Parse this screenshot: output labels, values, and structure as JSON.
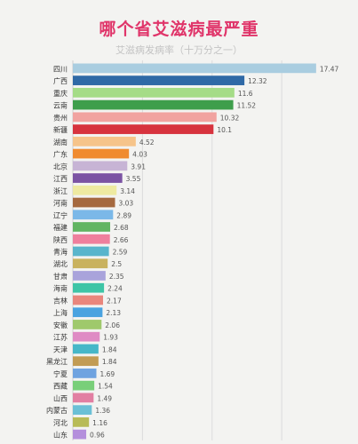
{
  "chart_data": {
    "type": "bar",
    "orientation": "horizontal",
    "title": "哪个省艾滋病最严重",
    "subtitle": "艾滋病发病率（十万分之一）",
    "categories": [
      "四川",
      "广西",
      "重庆",
      "云南",
      "贵州",
      "新疆",
      "湖南",
      "广东",
      "北京",
      "江西",
      "浙江",
      "河南",
      "辽宁",
      "福建",
      "陕西",
      "青海",
      "湖北",
      "甘肃",
      "海南",
      "吉林",
      "上海",
      "安徽",
      "江苏",
      "天津",
      "黑龙江",
      "宁夏",
      "西藏",
      "山西",
      "内蒙古",
      "河北",
      "山东"
    ],
    "values": [
      17.47,
      12.32,
      11.6,
      11.52,
      10.32,
      10.1,
      4.52,
      4.03,
      3.91,
      3.55,
      3.14,
      3.03,
      2.89,
      2.68,
      2.66,
      2.59,
      2.5,
      2.35,
      2.24,
      2.17,
      2.13,
      2.06,
      1.93,
      1.84,
      1.84,
      1.69,
      1.54,
      1.49,
      1.36,
      1.16,
      0.96
    ],
    "value_labels": [
      "17.47",
      "12.32",
      "11.6",
      "11.52",
      "10.32",
      "10.1",
      "4.52",
      "4.03",
      "3.91",
      "3.55",
      "3.14",
      "3.03",
      "2.89",
      "2.68",
      "2.66",
      "2.59",
      "2.5",
      "2.35",
      "2.24",
      "2.17",
      "2.13",
      "2.06",
      "1.93",
      "1.84",
      "1.84",
      "1.69",
      "1.54",
      "1.49",
      "1.36",
      "1.16",
      "0.96"
    ],
    "colors": [
      "#a9cde0",
      "#2f69a6",
      "#a5dc87",
      "#3e9e4b",
      "#f1a3a0",
      "#d7333e",
      "#f6c48a",
      "#f08b2f",
      "#c7b4d5",
      "#7b53a3",
      "#eeeaa1",
      "#a5693f",
      "#7bb8e8",
      "#62b562",
      "#ef7f9d",
      "#59b5cc",
      "#c9b25e",
      "#a9a3db",
      "#3ec5a6",
      "#e9867c",
      "#4aa3e0",
      "#9fc96c",
      "#df8bc4",
      "#46b7c8",
      "#c29c54",
      "#6fa3e0",
      "#79cf79",
      "#e27fa2",
      "#6bc0d6",
      "#b8bb57",
      "#b48fdc"
    ],
    "xlim": [
      0,
      18.5
    ],
    "grid": true,
    "legend": "none"
  }
}
